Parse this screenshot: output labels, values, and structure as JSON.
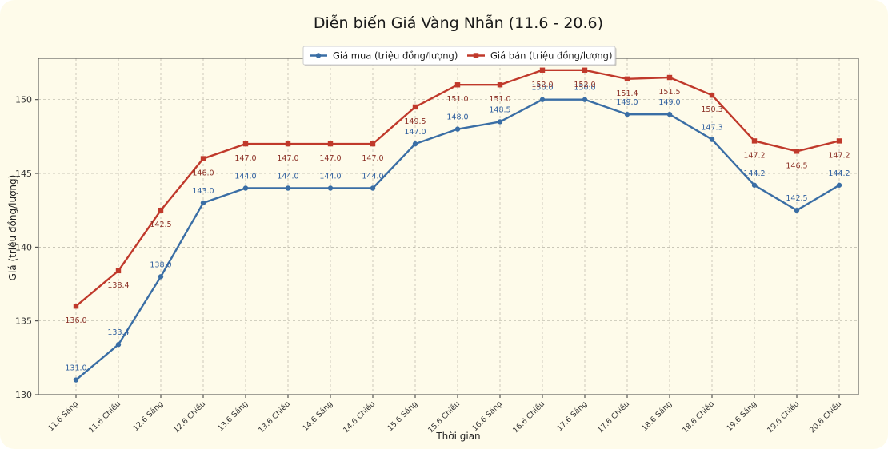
{
  "chart_data": {
    "type": "line",
    "title": "Diễn biến Giá Vàng Nhẫn (11.6 - 20.6)",
    "xlabel": "Thời gian",
    "ylabel": "Giá (triệu đồng/lượng)",
    "ylim": [
      130,
      152.8
    ],
    "yticks": [
      130,
      135,
      140,
      145,
      150
    ],
    "grid": true,
    "legend_position": "top-center",
    "categories": [
      "11.6 Sáng",
      "11.6 Chiều",
      "12.6 Sáng",
      "12.6 Chiều",
      "13.6 Sáng",
      "13.6 Chiều",
      "14.6 Sáng",
      "14.6 Chiều",
      "15.6 Sáng",
      "15.6 Chiều",
      "16.6 Sáng",
      "16.6 Chiều",
      "17.6 Sáng",
      "17.6 Chiều",
      "18.6 Sáng",
      "18.6 Chiều",
      "19.6 Sáng",
      "19.6 Chiều",
      "20.6 Chiều"
    ],
    "series": [
      {
        "name": "Giá mua (triệu đồng/lượng)",
        "color": "#3a6ea5",
        "marker": "circle",
        "values": [
          131.0,
          133.4,
          138.0,
          143.0,
          144.0,
          144.0,
          144.0,
          144.0,
          147.0,
          148.0,
          148.5,
          150.0,
          150.0,
          149.0,
          149.0,
          147.3,
          144.2,
          142.5,
          144.2
        ],
        "labels": [
          "131.0",
          "133.4",
          "138.0",
          "143.0",
          "144.0",
          "144.0",
          "144.0",
          "144.0",
          "147.0",
          "148.0",
          "148.5",
          "150.0",
          "150.0",
          "149.0",
          "149.0",
          "147.3",
          "144.2",
          "142.5",
          "144.2"
        ]
      },
      {
        "name": "Giá bán (triệu đồng/lượng)",
        "color": "#c0392b",
        "marker": "square",
        "values": [
          136.0,
          138.4,
          142.5,
          146.0,
          147.0,
          147.0,
          147.0,
          147.0,
          149.5,
          151.0,
          151.0,
          152.0,
          152.0,
          151.4,
          151.5,
          150.3,
          147.2,
          146.5,
          147.2
        ],
        "labels": [
          "136.0",
          "138.4",
          "142.5",
          "146.0",
          "147.0",
          "147.0",
          "147.0",
          "147.0",
          "149.5",
          "151.0",
          "151.0",
          "152.0",
          "152.0",
          "151.4",
          "151.5",
          "150.3",
          "147.2",
          "146.5",
          "147.2"
        ]
      }
    ]
  }
}
